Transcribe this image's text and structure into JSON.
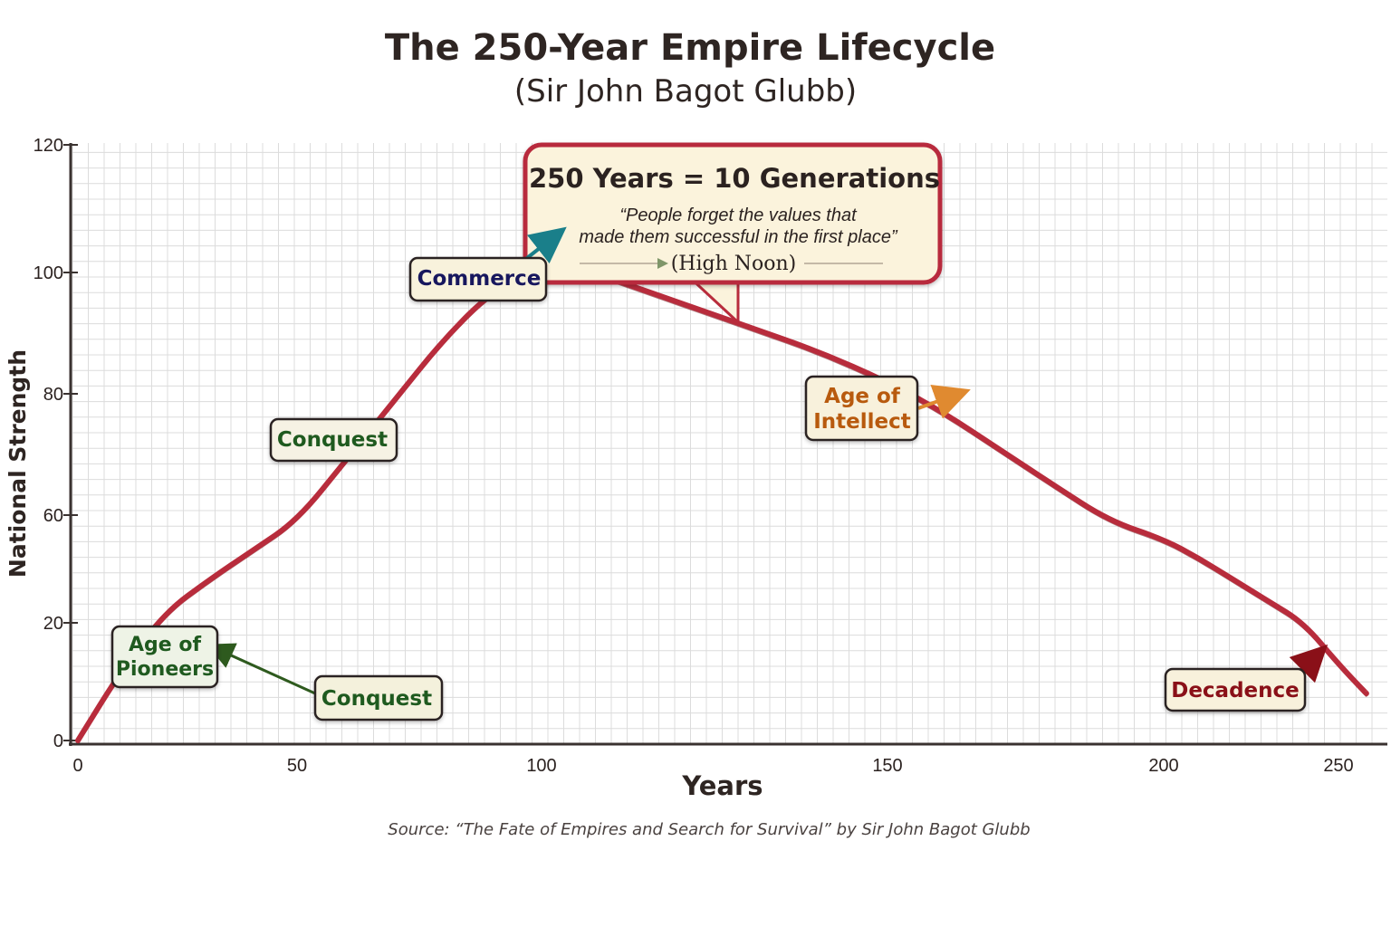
{
  "colors": {
    "curve": "#b82c3c",
    "pioneers": "#1f5a1f",
    "conquest": "#1f5a1f",
    "commerce": "#17175e",
    "intellect": "#b85a0e",
    "decadence": "#8a1018",
    "commerce_arrow": "#1a7f8a",
    "intellect_arrow": "#e08a30",
    "decadence_arrow": "#8a1018",
    "pioneers_arrow": "#2e5a1e",
    "callout_border": "#b82c3c",
    "callout_fill": "#fbf3dc"
  },
  "title": {
    "main": "The 250-Year Empire Lifecycle",
    "sub": "(Sir John Bagot Glubb)"
  },
  "source": "Source: “The Fate of Empires and Search for Survival” by Sir John Bagot Glubb",
  "chart_data": {
    "type": "line",
    "title": "The 250-Year Empire Lifecycle",
    "subtitle": "(Sir John Bagot Glubb)",
    "xlabel": "Years",
    "ylabel": "National Strength",
    "xlim": [
      0,
      258
    ],
    "ylim": [
      0,
      120
    ],
    "x_ticks": [
      0,
      50,
      100,
      150,
      200,
      250
    ],
    "y_ticks": [
      0,
      20,
      60,
      80,
      100,
      120
    ],
    "grid": true,
    "series": [
      {
        "name": "National Strength",
        "x": [
          0,
          10,
          20,
          30,
          40,
          50,
          60,
          70,
          80,
          90,
          100,
          105,
          110,
          115,
          120,
          125,
          130,
          140,
          150,
          160,
          170,
          180,
          190,
          200,
          210,
          220,
          230,
          240,
          250,
          258
        ],
        "y": [
          0,
          12,
          24,
          36,
          47,
          58,
          69,
          79,
          89,
          97,
          101,
          101,
          99,
          97,
          95,
          93,
          91,
          87,
          82,
          77,
          71,
          65,
          58,
          51,
          44,
          36,
          28,
          20,
          13,
          8
        ]
      }
    ],
    "annotations": [
      {
        "label": "Age of Pioneers",
        "stage": 1
      },
      {
        "label": "Conquest",
        "stage": 2
      },
      {
        "label": "Conquest",
        "stage": 2
      },
      {
        "label": "Commerce",
        "stage": 3
      },
      {
        "label": "Age of Intellect",
        "stage": 5
      },
      {
        "label": "Decadence",
        "stage": 6
      }
    ]
  },
  "labels": {
    "pioneers": [
      "Age of",
      "Pioneers"
    ],
    "conquest_upper": "Conquest",
    "conquest_lower": "Conquest",
    "commerce": "Commerce",
    "intellect": [
      "Age of",
      "Intellect"
    ],
    "decadence": "Decadence"
  },
  "callout": {
    "heading": "250 Years = 10 Generations",
    "quote_line1": "“People forget the values that",
    "quote_line2": "made them successful in the first place”",
    "note": "(High Noon)"
  }
}
